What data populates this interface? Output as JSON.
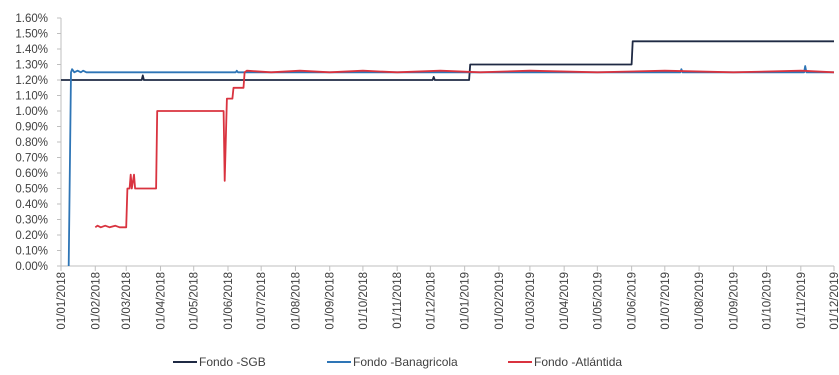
{
  "chart_data": {
    "type": "line",
    "title": "",
    "xlabel": "",
    "ylabel": "",
    "ylim": [
      0,
      1.6
    ],
    "yticks": [
      "0.00%",
      "0.10%",
      "0.20%",
      "0.30%",
      "0.40%",
      "0.50%",
      "0.60%",
      "0.70%",
      "0.80%",
      "0.90%",
      "1.00%",
      "1.10%",
      "1.20%",
      "1.30%",
      "1.40%",
      "1.50%",
      "1.60%"
    ],
    "xlim": [
      "2018-01-01",
      "2019-12-01"
    ],
    "xticks": [
      {
        "date": "2018-01-01",
        "label": "01/01/2018"
      },
      {
        "date": "2018-02-01",
        "label": "01/02/2018"
      },
      {
        "date": "2018-03-01",
        "label": "01/03/2018"
      },
      {
        "date": "2018-04-01",
        "label": "01/04/2018"
      },
      {
        "date": "2018-05-01",
        "label": "01/05/2018"
      },
      {
        "date": "2018-06-01",
        "label": "01/06/2018"
      },
      {
        "date": "2018-07-01",
        "label": "01/07/2018"
      },
      {
        "date": "2018-08-01",
        "label": "01/08/2018"
      },
      {
        "date": "2018-09-01",
        "label": "01/09/2018"
      },
      {
        "date": "2018-10-01",
        "label": "01/10/2018"
      },
      {
        "date": "2018-11-01",
        "label": "01/11/2018"
      },
      {
        "date": "2018-12-01",
        "label": "01/12/2018"
      },
      {
        "date": "2019-01-01",
        "label": "01/01/2019"
      },
      {
        "date": "2019-02-01",
        "label": "01/02/2019"
      },
      {
        "date": "2019-03-01",
        "label": "01/03/2019"
      },
      {
        "date": "2019-04-01",
        "label": "01/04/2019"
      },
      {
        "date": "2019-05-01",
        "label": "01/05/2019"
      },
      {
        "date": "2019-06-01",
        "label": "01/06/2019"
      },
      {
        "date": "2019-07-01",
        "label": "01/07/2019"
      },
      {
        "date": "2019-08-01",
        "label": "01/08/2019"
      },
      {
        "date": "2019-09-01",
        "label": "01/09/2019"
      },
      {
        "date": "2019-10-01",
        "label": "01/10/2019"
      },
      {
        "date": "2019-11-01",
        "label": "01/11/2019"
      },
      {
        "date": "2019-12-01",
        "label": "01/12/2019"
      }
    ],
    "grid": false,
    "legend_position": "bottom",
    "series": [
      {
        "name": "Fondo -SGB",
        "color": "#1f2a44",
        "points": [
          [
            "2018-01-01",
            1.2
          ],
          [
            "2018-03-15",
            1.2
          ],
          [
            "2018-03-16",
            1.23
          ],
          [
            "2018-03-17",
            1.2
          ],
          [
            "2018-12-03",
            1.2
          ],
          [
            "2018-12-04",
            1.22
          ],
          [
            "2018-12-05",
            1.2
          ],
          [
            "2019-01-05",
            1.2
          ],
          [
            "2019-01-06",
            1.3
          ],
          [
            "2019-06-01",
            1.3
          ],
          [
            "2019-06-02",
            1.45
          ],
          [
            "2019-12-01",
            1.45
          ]
        ]
      },
      {
        "name": "Fondo -Banagricola",
        "color": "#2e75b6",
        "points": [
          [
            "2018-01-08",
            0.0
          ],
          [
            "2018-01-10",
            1.25
          ],
          [
            "2018-01-11",
            1.27
          ],
          [
            "2018-01-13",
            1.25
          ],
          [
            "2018-01-16",
            1.26
          ],
          [
            "2018-01-19",
            1.25
          ],
          [
            "2018-01-21",
            1.26
          ],
          [
            "2018-01-24",
            1.25
          ],
          [
            "2018-06-08",
            1.25
          ],
          [
            "2018-06-09",
            1.26
          ],
          [
            "2018-06-10",
            1.25
          ],
          [
            "2019-07-15",
            1.25
          ],
          [
            "2019-07-16",
            1.27
          ],
          [
            "2019-07-17",
            1.25
          ],
          [
            "2019-11-04",
            1.25
          ],
          [
            "2019-11-05",
            1.29
          ],
          [
            "2019-11-06",
            1.25
          ],
          [
            "2019-12-01",
            1.25
          ]
        ]
      },
      {
        "name": "Fondo -Atlántida",
        "color": "#d9333f",
        "points": [
          [
            "2018-02-01",
            0.25
          ],
          [
            "2018-02-03",
            0.26
          ],
          [
            "2018-02-06",
            0.25
          ],
          [
            "2018-02-10",
            0.26
          ],
          [
            "2018-02-14",
            0.25
          ],
          [
            "2018-02-19",
            0.26
          ],
          [
            "2018-02-23",
            0.25
          ],
          [
            "2018-03-01",
            0.25
          ],
          [
            "2018-03-02",
            0.5
          ],
          [
            "2018-03-04",
            0.5
          ],
          [
            "2018-03-05",
            0.59
          ],
          [
            "2018-03-06",
            0.5
          ],
          [
            "2018-03-08",
            0.59
          ],
          [
            "2018-03-09",
            0.5
          ],
          [
            "2018-03-28",
            0.5
          ],
          [
            "2018-03-29",
            1.0
          ],
          [
            "2018-05-28",
            1.0
          ],
          [
            "2018-05-29",
            0.55
          ],
          [
            "2018-05-31",
            1.08
          ],
          [
            "2018-06-05",
            1.08
          ],
          [
            "2018-06-06",
            1.15
          ],
          [
            "2018-06-15",
            1.15
          ],
          [
            "2018-06-16",
            1.25
          ],
          [
            "2018-06-18",
            1.26
          ],
          [
            "2018-07-10",
            1.25
          ],
          [
            "2018-08-05",
            1.26
          ],
          [
            "2018-09-01",
            1.25
          ],
          [
            "2018-10-01",
            1.26
          ],
          [
            "2018-11-01",
            1.25
          ],
          [
            "2018-12-10",
            1.26
          ],
          [
            "2019-01-15",
            1.25
          ],
          [
            "2019-03-01",
            1.26
          ],
          [
            "2019-05-01",
            1.25
          ],
          [
            "2019-07-01",
            1.26
          ],
          [
            "2019-09-01",
            1.25
          ],
          [
            "2019-11-01",
            1.26
          ],
          [
            "2019-12-01",
            1.25
          ]
        ]
      }
    ]
  }
}
